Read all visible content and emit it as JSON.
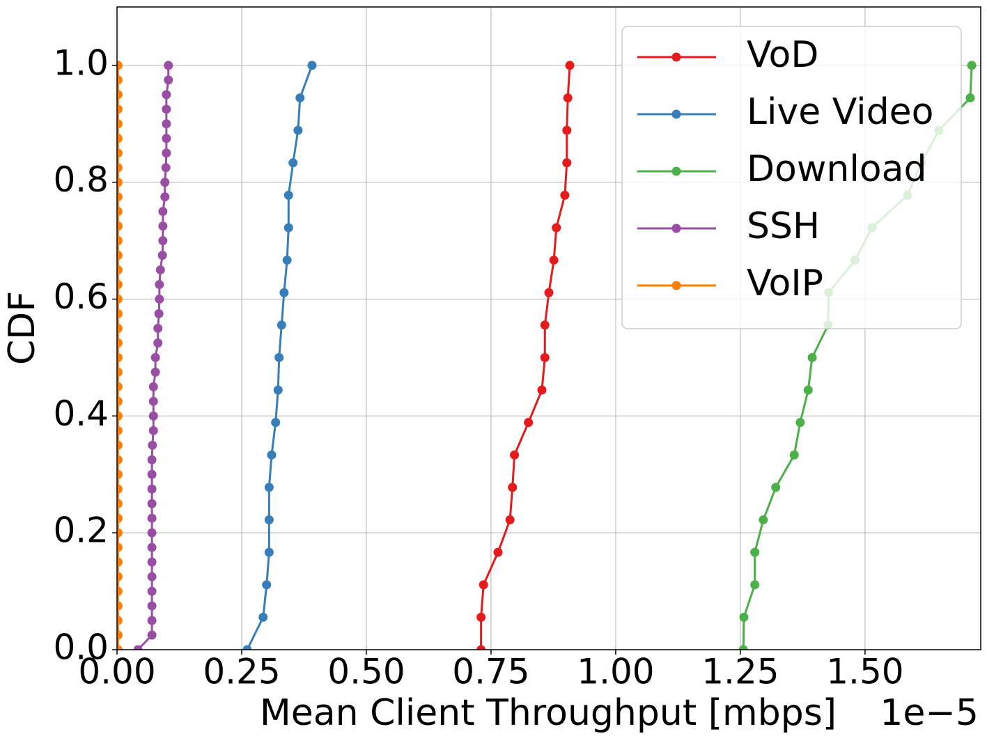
{
  "chart_data": {
    "type": "line",
    "xlabel": "Mean Client Throughput [mbps]",
    "ylabel": "CDF",
    "x_offset_text": "1e−5",
    "xlim": [
      0,
      1.732
    ],
    "ylim": [
      0,
      1.1
    ],
    "xticks": [
      {
        "value": 0,
        "label": "0.00"
      },
      {
        "value": 0.25,
        "label": "0.25"
      },
      {
        "value": 0.5,
        "label": "0.50"
      },
      {
        "value": 0.75,
        "label": "0.75"
      },
      {
        "value": 1.0,
        "label": "1.00"
      },
      {
        "value": 1.25,
        "label": "1.25"
      },
      {
        "value": 1.5,
        "label": "1.50"
      }
    ],
    "yticks": [
      {
        "value": 0,
        "label": "0.0"
      },
      {
        "value": 0.2,
        "label": "0.2"
      },
      {
        "value": 0.4,
        "label": "0.4"
      },
      {
        "value": 0.6,
        "label": "0.6"
      },
      {
        "value": 0.8,
        "label": "0.8"
      },
      {
        "value": 1.0,
        "label": "1.0"
      }
    ],
    "grid": true,
    "legend": "upper right",
    "series": [
      {
        "name": "VoD",
        "color": "#e41a1c",
        "x": [
          0.73,
          0.73,
          0.735,
          0.764,
          0.788,
          0.793,
          0.797,
          0.825,
          0.852,
          0.858,
          0.858,
          0.866,
          0.876,
          0.881,
          0.898,
          0.902,
          0.902,
          0.904,
          0.908
        ],
        "y": [
          0,
          0.0556,
          0.1111,
          0.1667,
          0.2222,
          0.2778,
          0.3333,
          0.3889,
          0.4444,
          0.5,
          0.5556,
          0.6111,
          0.6667,
          0.7222,
          0.7778,
          0.8333,
          0.8889,
          0.9444,
          1.0
        ]
      },
      {
        "name": "Live Video",
        "color": "#377eb8",
        "x": [
          0.261,
          0.293,
          0.3,
          0.305,
          0.305,
          0.305,
          0.31,
          0.318,
          0.323,
          0.325,
          0.33,
          0.335,
          0.341,
          0.344,
          0.344,
          0.353,
          0.363,
          0.367,
          0.391
        ],
        "y": [
          0,
          0.0556,
          0.1111,
          0.1667,
          0.2222,
          0.2778,
          0.3333,
          0.3889,
          0.4444,
          0.5,
          0.5556,
          0.6111,
          0.6667,
          0.7222,
          0.7778,
          0.8333,
          0.8889,
          0.9444,
          1.0
        ]
      },
      {
        "name": "Download",
        "color": "#4daf4a",
        "x": [
          1.256,
          1.257,
          1.279,
          1.279,
          1.296,
          1.321,
          1.358,
          1.37,
          1.386,
          1.394,
          1.426,
          1.427,
          1.48,
          1.514,
          1.585,
          1.613,
          1.648,
          1.711,
          1.714
        ],
        "y": [
          0,
          0.0556,
          0.1111,
          0.1667,
          0.2222,
          0.2778,
          0.3333,
          0.3889,
          0.4444,
          0.5,
          0.5556,
          0.6111,
          0.6667,
          0.7222,
          0.7778,
          0.8333,
          0.8889,
          0.9444,
          1.0
        ]
      },
      {
        "name": "SSH",
        "color": "#984ea3",
        "x": [
          0.042,
          0.07,
          0.07,
          0.07,
          0.07,
          0.07,
          0.07,
          0.07,
          0.07,
          0.07,
          0.07,
          0.07,
          0.07,
          0.07,
          0.071,
          0.073,
          0.073,
          0.073,
          0.073,
          0.077,
          0.077,
          0.082,
          0.082,
          0.084,
          0.085,
          0.085,
          0.087,
          0.091,
          0.092,
          0.092,
          0.092,
          0.096,
          0.096,
          0.098,
          0.099,
          0.099,
          0.099,
          0.099,
          0.099,
          0.103,
          0.103
        ],
        "y": [
          0,
          0.025,
          0.05,
          0.075,
          0.1,
          0.125,
          0.15,
          0.175,
          0.2,
          0.225,
          0.25,
          0.275,
          0.3,
          0.325,
          0.35,
          0.375,
          0.4,
          0.425,
          0.45,
          0.475,
          0.5,
          0.525,
          0.55,
          0.575,
          0.6,
          0.625,
          0.65,
          0.675,
          0.7,
          0.725,
          0.75,
          0.775,
          0.8,
          0.825,
          0.85,
          0.875,
          0.9,
          0.925,
          0.95,
          0.975,
          1.0
        ]
      },
      {
        "name": "VoIP",
        "color": "#ff7f00",
        "x": [
          0.002,
          0.002,
          0.002,
          0.002,
          0.002,
          0.002,
          0.002,
          0.002,
          0.002,
          0.002,
          0.002,
          0.002,
          0.002,
          0.002,
          0.002,
          0.002,
          0.002,
          0.002,
          0.002,
          0.002,
          0.002,
          0.002,
          0.002,
          0.002,
          0.002,
          0.002,
          0.002,
          0.002,
          0.002,
          0.002,
          0.002,
          0.002,
          0.002,
          0.002,
          0.002,
          0.002,
          0.002,
          0.002,
          0.002,
          0.002,
          0.002
        ],
        "y": [
          0,
          0.025,
          0.05,
          0.075,
          0.1,
          0.125,
          0.15,
          0.175,
          0.2,
          0.225,
          0.25,
          0.275,
          0.3,
          0.325,
          0.35,
          0.375,
          0.4,
          0.425,
          0.45,
          0.475,
          0.5,
          0.525,
          0.55,
          0.575,
          0.6,
          0.625,
          0.65,
          0.675,
          0.7,
          0.725,
          0.75,
          0.775,
          0.8,
          0.825,
          0.85,
          0.875,
          0.9,
          0.925,
          0.95,
          0.975,
          1.0
        ]
      }
    ]
  }
}
